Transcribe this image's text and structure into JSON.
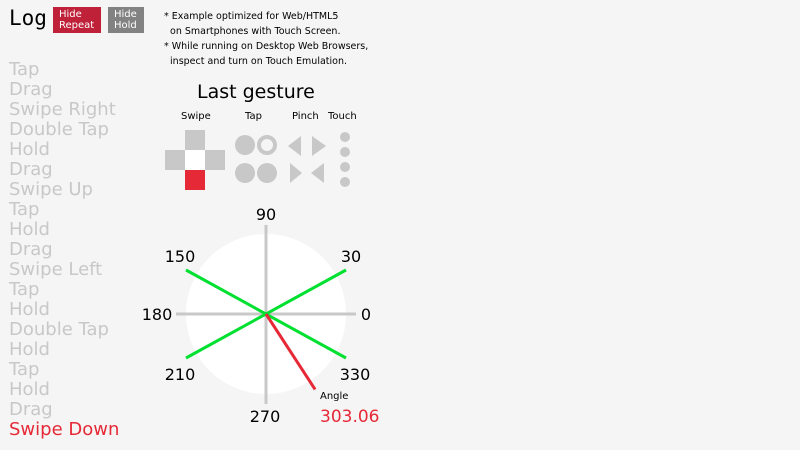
{
  "log": {
    "title": "Log",
    "hide_repeat": "Hide\nRepeat",
    "hide_hold": "Hide\nHold",
    "items": [
      "Tap",
      "Drag",
      "Swipe Right",
      "Double Tap",
      "Hold",
      "Drag",
      "Swipe Up",
      "Tap",
      "Hold",
      "Drag",
      "Swipe Left",
      "Tap",
      "Hold",
      "Double Tap",
      "Hold",
      "Tap",
      "Hold",
      "Drag",
      "Swipe Down"
    ]
  },
  "notes": [
    "* Example optimized for Web/HTML5",
    "  on Smartphones with Touch Screen.",
    "* While running on Desktop Web Browsers,",
    "  inspect and turn on Touch Emulation."
  ],
  "last_gesture": {
    "title": "Last gesture",
    "labels": {
      "swipe": "Swipe",
      "tap": "Tap",
      "pinch": "Pinch",
      "touch": "Touch"
    },
    "active": "Swipe Down"
  },
  "angle_dial": {
    "ticks": [
      "90",
      "30",
      "0",
      "330",
      "270",
      "210",
      "180",
      "150"
    ],
    "angle_label": "Angle",
    "angle_value": "303.06",
    "angle_deg": 303.06
  },
  "colors": {
    "active": "#e62937",
    "guide": "#00e030",
    "hide_repeat_bg": "#be2138",
    "hide_hold_bg": "#828282",
    "inactive": "#c8c8c8"
  }
}
